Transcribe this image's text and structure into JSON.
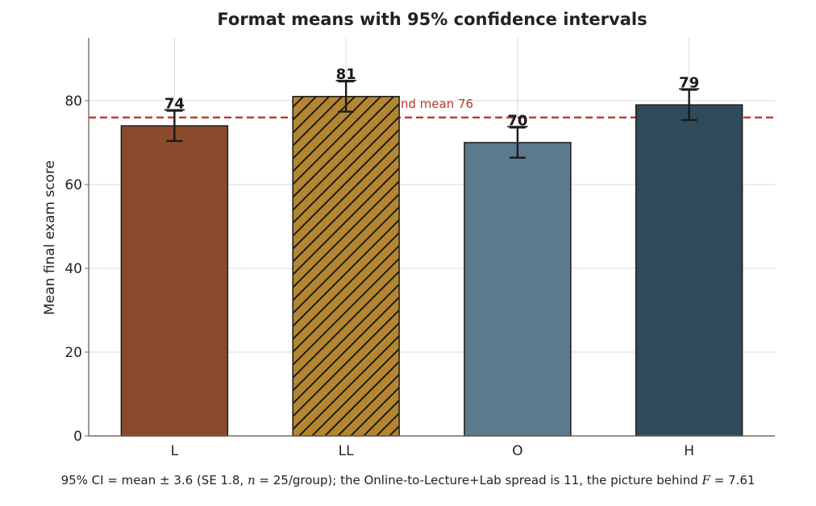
{
  "chart_data": {
    "type": "bar",
    "title": "Format means with 95% confidence intervals",
    "xlabel": "",
    "ylabel": "Mean final exam score",
    "ylim": [
      0,
      95
    ],
    "yticks": [
      0,
      20,
      40,
      60,
      80
    ],
    "grid": true,
    "categories": [
      "L",
      "LL",
      "O",
      "H"
    ],
    "values": [
      74,
      81,
      70,
      79
    ],
    "value_labels": [
      "74",
      "81",
      "70",
      "79"
    ],
    "ci_half_width": 3.6,
    "error_low": [
      70.4,
      77.4,
      66.4,
      75.4
    ],
    "error_high": [
      77.6,
      84.6,
      73.6,
      82.6
    ],
    "bar_colors": [
      "#8b4a2b",
      "#b5862f",
      "#5b7a8c",
      "#2f4a5a"
    ],
    "bar_hatch": [
      false,
      true,
      false,
      false
    ],
    "reference_line": {
      "value": 76,
      "label": "grand mean 76",
      "color": "#c0392b"
    },
    "annotation": {
      "p1": "95% CI = mean ± 3.6 (SE 1.8, ",
      "n_sym": "n",
      "p2": " = 25/group); the Online-to-Lecture+Lab spread is 11, the picture behind ",
      "f_sym": "F",
      "p3": " = 7.61"
    }
  }
}
